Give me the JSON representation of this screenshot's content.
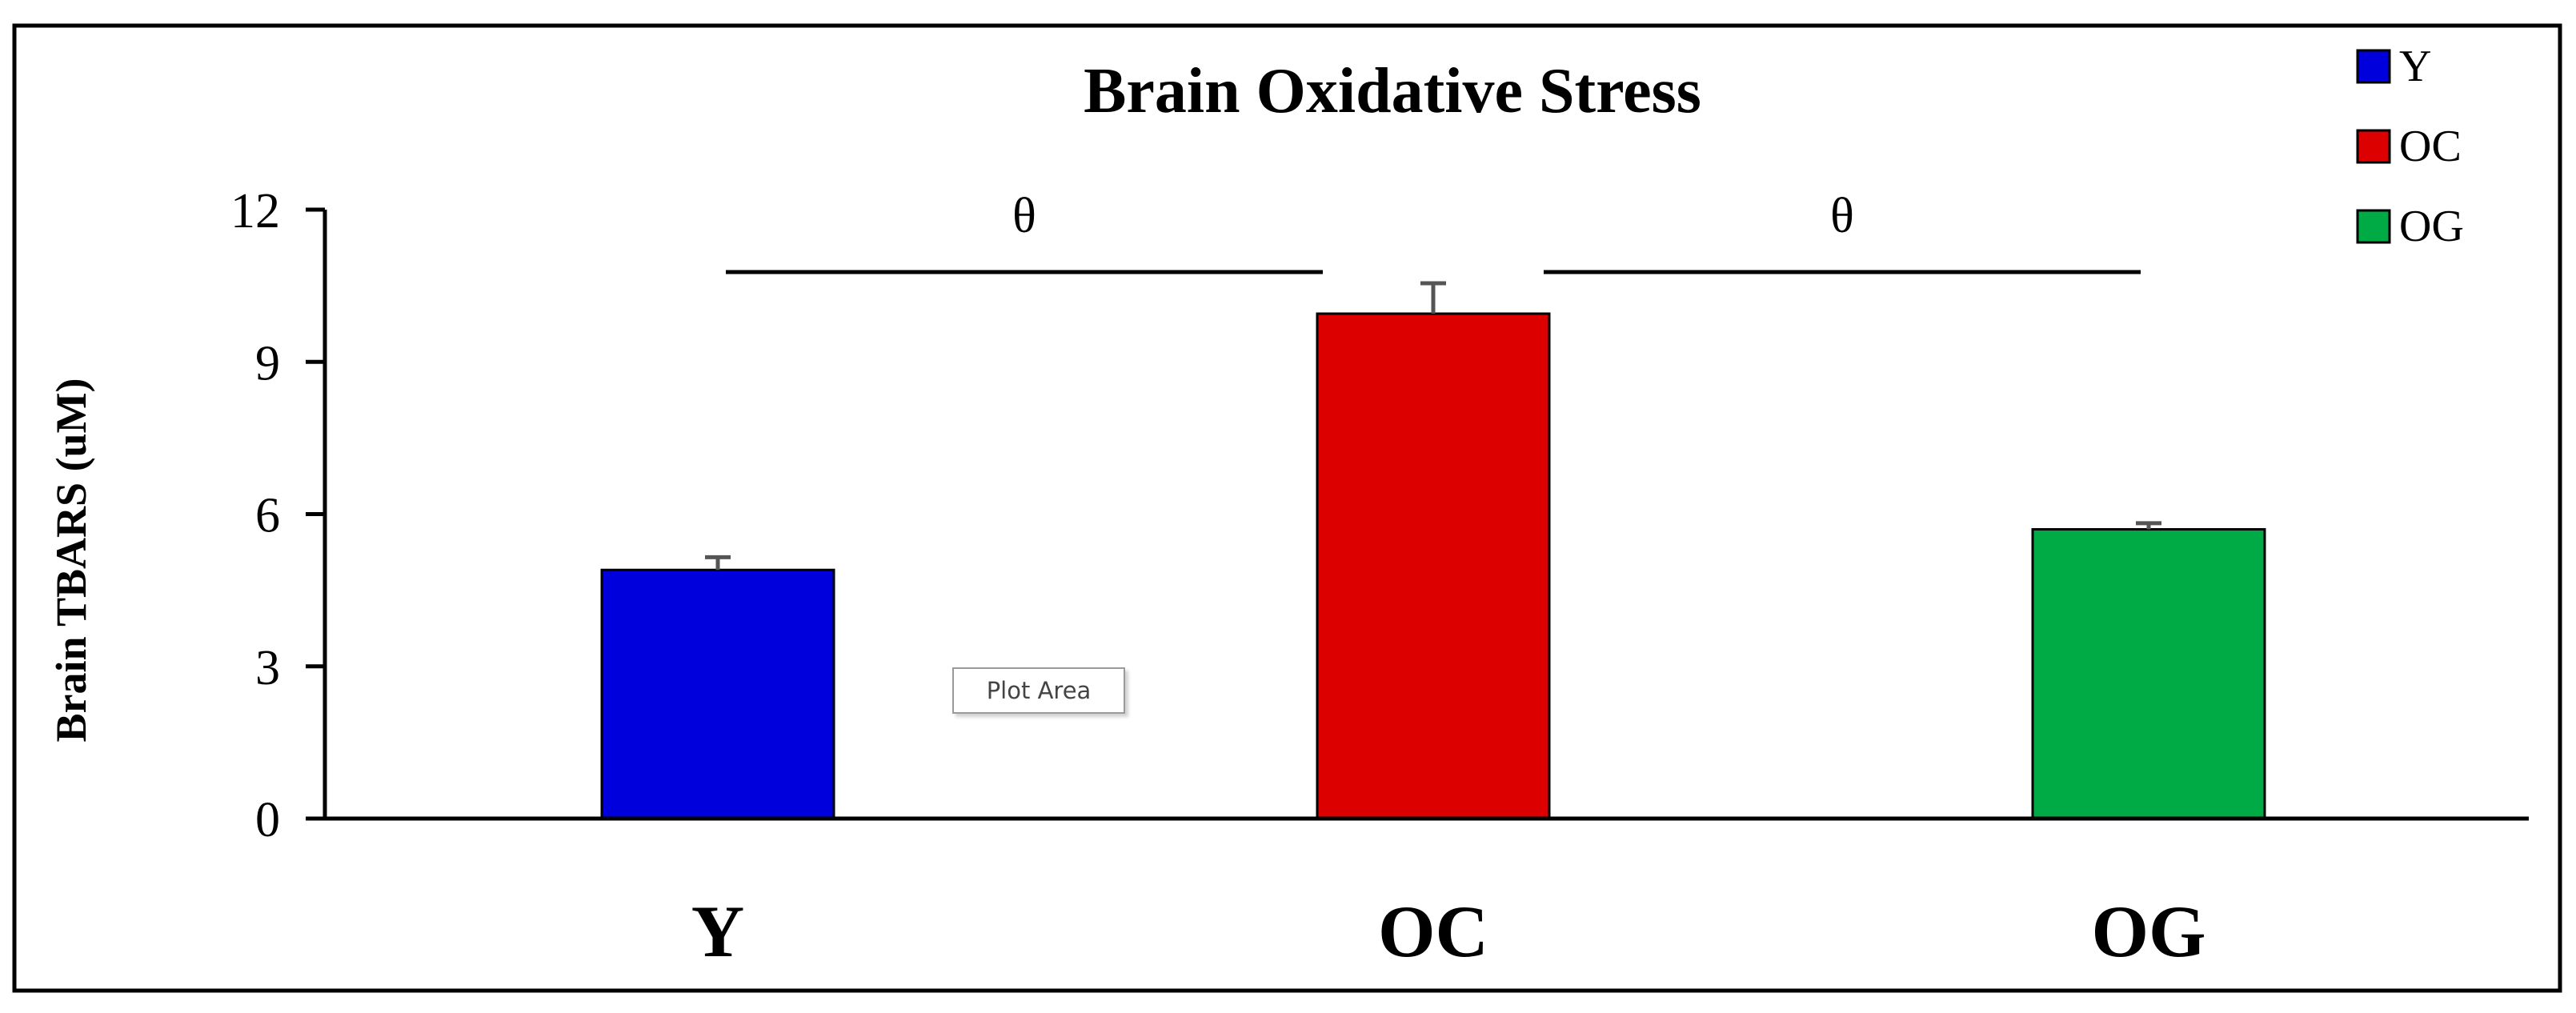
{
  "chart_data": {
    "type": "bar",
    "title": "Brain Oxidative Stress",
    "ylabel": "Brain TBARS (uM)",
    "xlabel": "",
    "categories": [
      "Y",
      "OC",
      "OG"
    ],
    "values": [
      4.9,
      9.95,
      5.7
    ],
    "errors": [
      0.25,
      0.6,
      0.12
    ],
    "colors": [
      "#0000dd",
      "#dd0000",
      "#00aa44"
    ],
    "ylim": [
      0,
      12
    ],
    "yticks": [
      0,
      3,
      6,
      9,
      12
    ],
    "grid": false,
    "legend": {
      "position": "top-right",
      "entries": [
        {
          "label": "Y",
          "color": "#0000dd"
        },
        {
          "label": "OC",
          "color": "#dd0000"
        },
        {
          "label": "OG",
          "color": "#00aa44"
        }
      ]
    },
    "annotations": [
      {
        "text": "θ",
        "from": "Y",
        "to": "OC"
      },
      {
        "text": "θ",
        "from": "OC",
        "to": "OG"
      }
    ]
  },
  "tooltip": {
    "text": "Plot Area"
  }
}
